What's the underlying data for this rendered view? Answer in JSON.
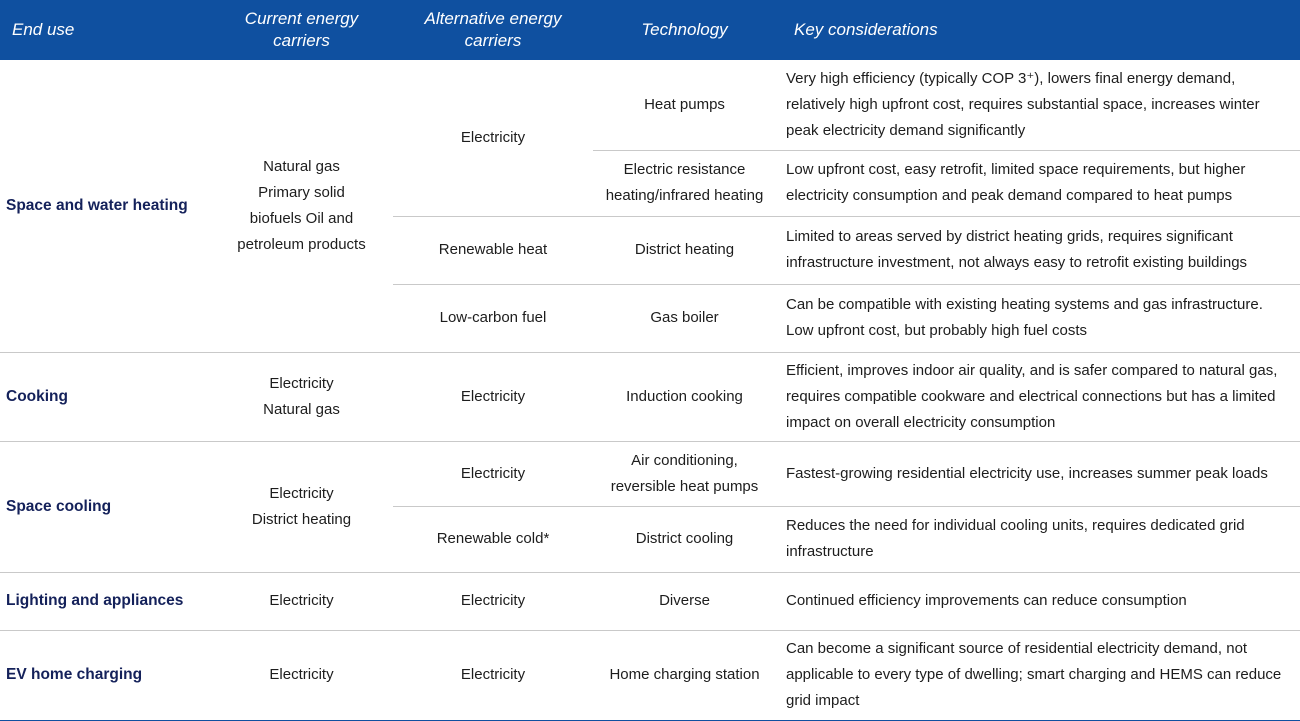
{
  "table": {
    "headers": {
      "end_use": "End use",
      "current": "Current energy carriers",
      "alternative": "Alternative energy carriers",
      "technology": "Technology",
      "key": "Key considerations"
    },
    "rows": [
      {
        "end_use": "Space and water heating",
        "current": [
          "Natural gas",
          "Primary solid",
          "biofuels Oil and",
          "petroleum products"
        ],
        "alternatives": [
          {
            "carrier": "Electricity",
            "techs": [
              {
                "technology": "Heat pumps",
                "key": "Very high efficiency (typically COP 3⁺), lowers final energy demand, relatively high upfront cost, requires substantial space, increases winter peak electricity demand significantly"
              },
              {
                "technology": "Electric resistance heating/infrared heating",
                "key": "Low upfront cost, easy retrofit, limited space requirements, but higher electricity consumption and peak demand compared to heat pumps"
              }
            ]
          },
          {
            "carrier": "Renewable heat",
            "techs": [
              {
                "technology": "District heating",
                "key": "Limited to areas served by district heating grids, requires significant infrastructure investment, not always easy to retrofit existing buildings"
              }
            ]
          },
          {
            "carrier": "Low-carbon fuel",
            "techs": [
              {
                "technology": "Gas boiler",
                "key": "Can be compatible with existing heating systems and gas infrastructure. Low upfront cost, but probably high fuel costs"
              }
            ]
          }
        ]
      },
      {
        "end_use": "Cooking",
        "current": [
          "Electricity",
          "Natural gas"
        ],
        "alternatives": [
          {
            "carrier": "Electricity",
            "techs": [
              {
                "technology": "Induction cooking",
                "key": "Efficient, improves indoor air quality, and is safer compared to natural gas, requires compatible cookware and electrical connections but has a limited impact on overall electricity consumption"
              }
            ]
          }
        ]
      },
      {
        "end_use": "Space cooling",
        "current": [
          "Electricity",
          "District heating"
        ],
        "alternatives": [
          {
            "carrier": "Electricity",
            "techs": [
              {
                "technology": "Air conditioning, reversible heat pumps",
                "key": "Fastest-growing residential electricity use, increases summer peak loads"
              }
            ]
          },
          {
            "carrier": "Renewable cold*",
            "techs": [
              {
                "technology": "District cooling",
                "key": "Reduces the need for individual cooling units, requires dedicated grid infrastructure"
              }
            ]
          }
        ]
      },
      {
        "end_use": "Lighting and appliances",
        "current": [
          "Electricity"
        ],
        "alternatives": [
          {
            "carrier": "Electricity",
            "techs": [
              {
                "technology": "Diverse",
                "key": "Continued efficiency improvements can reduce consumption"
              }
            ]
          }
        ]
      },
      {
        "end_use": "EV home charging",
        "current": [
          "Electricity"
        ],
        "alternatives": [
          {
            "carrier": "Electricity",
            "techs": [
              {
                "technology": "Home charging station",
                "key": "Can become a significant source of residential electricity demand, not applicable to every type of dwelling; smart charging and HEMS can reduce grid impact"
              }
            ]
          }
        ]
      }
    ]
  }
}
